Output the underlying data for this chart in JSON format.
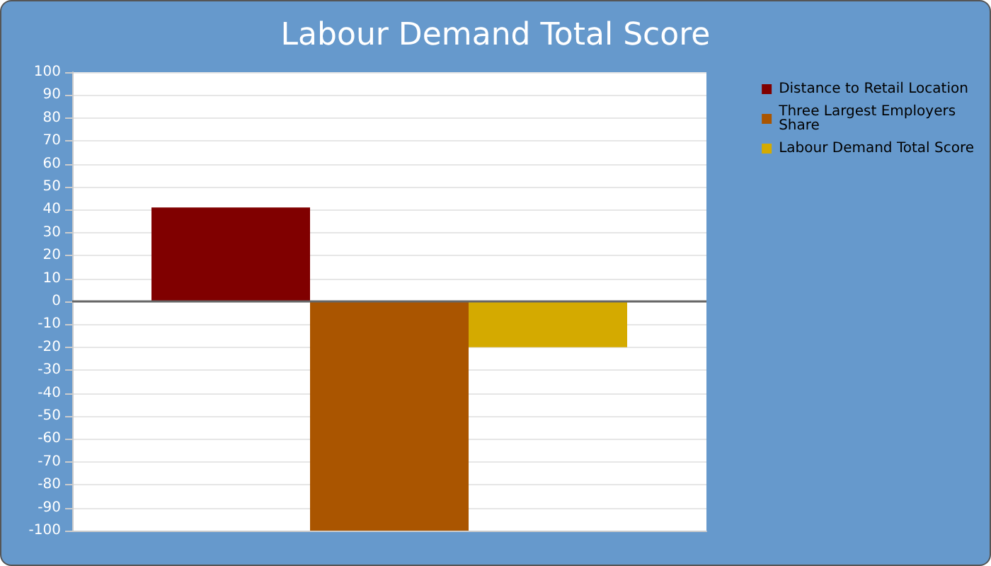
{
  "chart_data": {
    "type": "bar",
    "title": "Labour Demand Total Score",
    "categories": [
      null
    ],
    "series": [
      {
        "name": "Distance to Retail Location",
        "color": "#800000",
        "values": [
          41
        ]
      },
      {
        "name": "Three Largest Employers Share",
        "color": "#aa5500",
        "values": [
          -100
        ]
      },
      {
        "name": "Labour Demand Total Score",
        "color": "#d4aa00",
        "values": [
          -20
        ]
      }
    ],
    "ylim": [
      -100,
      100
    ],
    "yticks": [
      -100,
      -90,
      -80,
      -70,
      -60,
      -50,
      -40,
      -30,
      -20,
      -10,
      0,
      10,
      20,
      30,
      40,
      50,
      60,
      70,
      80,
      90,
      100
    ],
    "grid": "y",
    "legend": "right"
  }
}
